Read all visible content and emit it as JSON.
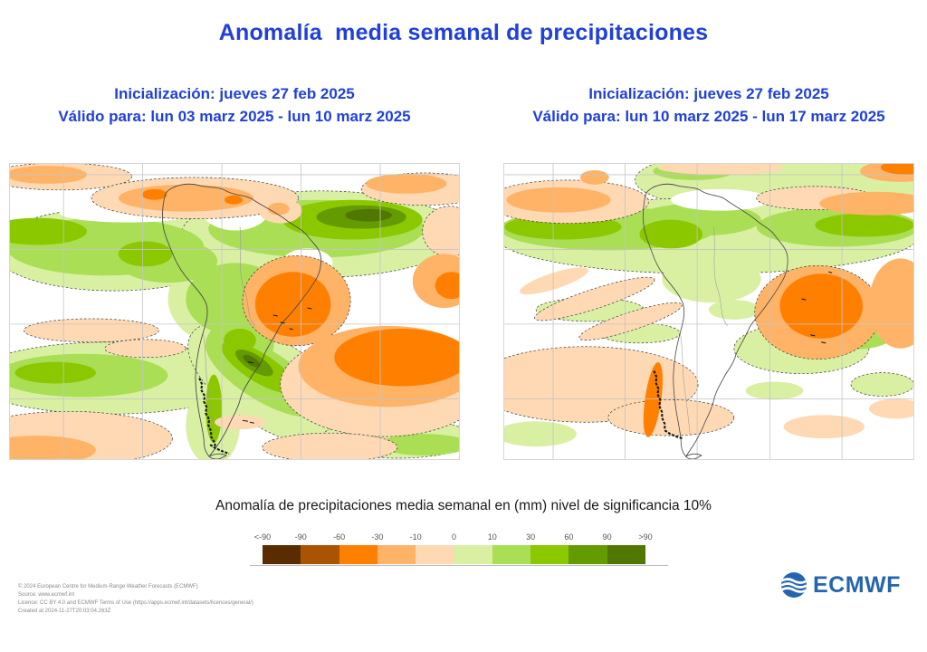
{
  "title": "Anomalía  media semanal de precipitaciones",
  "panels": [
    {
      "init": "Inicialización: jueves 27 feb 2025",
      "valid": "Válido para: lun 03 marz 2025 - lun 10 marz 2025"
    },
    {
      "init": "Inicialización: jueves 27 feb 2025",
      "valid": "Válido para: lun 10 marz 2025 - lun 17 marz 2025"
    }
  ],
  "caption": "Anomalía de precipitaciones media semanal en (mm) nivel de significancia 10%",
  "legend": {
    "tick_labels": [
      "<-90",
      "-90",
      "-60",
      "-30",
      "-10",
      "0",
      "10",
      "30",
      "60",
      "90",
      ">90"
    ],
    "colors": [
      "#5a2d00",
      "#a85400",
      "#ff8000",
      "#ffb366",
      "#ffd9b3",
      "#d9f0a3",
      "#aade55",
      "#8cc800",
      "#639b00",
      "#507800"
    ]
  },
  "footer": {
    "lines": [
      "© 2024 European Centre for Medium-Range Weather Forecasts (ECMWF)",
      "Source: www.ecmwf.int",
      "Licence: CC BY 4.0 and ECMWF Terms of Use (https://apps.ecmwf.int/datasets/licences/general/)",
      "Created at 2024-11-27T20:03:04.263Z"
    ]
  },
  "logo": {
    "text": "ECMWF",
    "color": "#2565ae"
  },
  "theme": {
    "title_color": "#2040d8"
  }
}
